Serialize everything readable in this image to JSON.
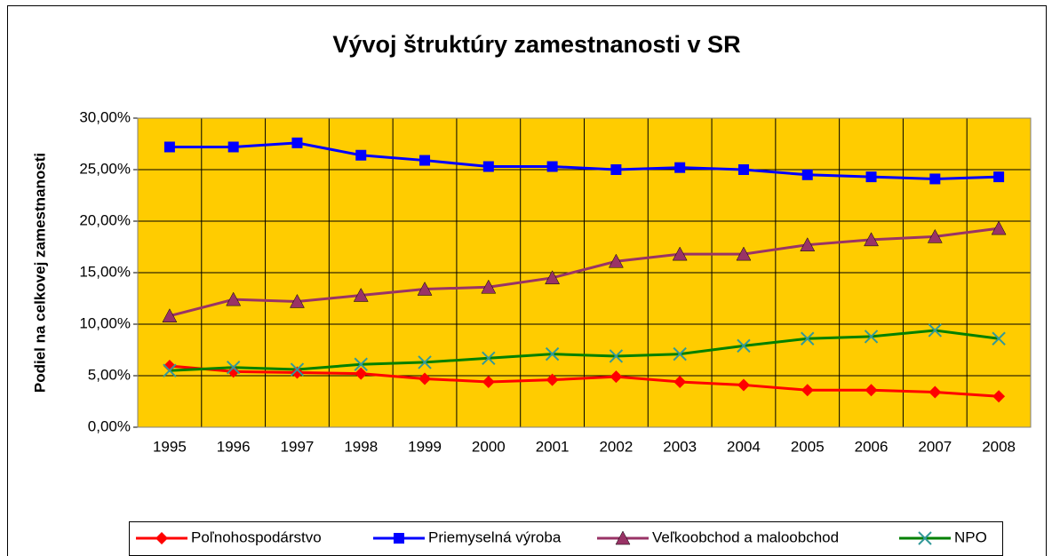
{
  "chart_data": {
    "type": "line",
    "title": "Vývoj štruktúry zamestnanosti v SR",
    "y_label": "Podiel na celkovej zamestnanosti",
    "categories": [
      "1995",
      "1996",
      "1997",
      "1998",
      "1999",
      "2000",
      "2001",
      "2002",
      "2003",
      "2004",
      "2005",
      "2006",
      "2007",
      "2008"
    ],
    "series": [
      {
        "name": "Poľnohospodárstvo",
        "color": "#ff0000",
        "marker": "diamond",
        "values": [
          5.95,
          5.4,
          5.3,
          5.2,
          4.7,
          4.4,
          4.6,
          4.9,
          4.4,
          4.1,
          3.6,
          3.6,
          3.4,
          3.0
        ]
      },
      {
        "name": "Priemyselná výroba",
        "color": "#0000ff",
        "marker": "square",
        "values": [
          27.2,
          27.2,
          27.6,
          26.4,
          25.9,
          25.3,
          25.3,
          25.0,
          25.2,
          25.0,
          24.5,
          24.3,
          24.1,
          24.3
        ]
      },
      {
        "name": "Veľkoobchod a maloobchod",
        "color": "#993366",
        "marker": "triangle",
        "values": [
          10.8,
          12.4,
          12.2,
          12.8,
          13.4,
          13.6,
          14.5,
          16.1,
          16.8,
          16.8,
          17.7,
          18.2,
          18.5,
          19.3
        ]
      },
      {
        "name": "NPO",
        "color": "#008000",
        "marker": "x",
        "values": [
          5.5,
          5.8,
          5.6,
          6.1,
          6.3,
          6.7,
          7.1,
          6.9,
          7.1,
          7.9,
          8.6,
          8.8,
          9.4,
          8.6
        ]
      }
    ],
    "ylim": [
      0,
      30
    ],
    "yticks": [
      {
        "value": 0,
        "label": "0,00%"
      },
      {
        "value": 5,
        "label": "5,00%"
      },
      {
        "value": 10,
        "label": "10,00%"
      },
      {
        "value": 15,
        "label": "15,00%"
      },
      {
        "value": 20,
        "label": "20,00%"
      },
      {
        "value": 25,
        "label": "25,00%"
      },
      {
        "value": 30,
        "label": "30,00%"
      }
    ],
    "grid": true,
    "legend": "bottom",
    "plot_background": "#ffcc00"
  }
}
